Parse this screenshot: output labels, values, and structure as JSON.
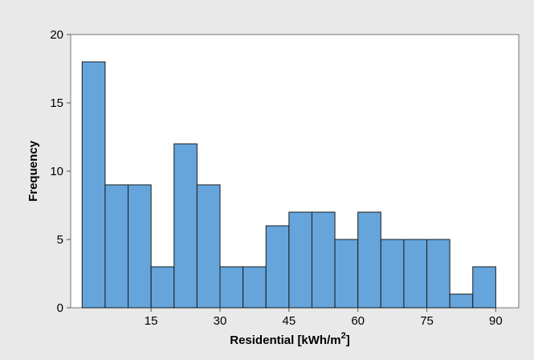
{
  "chart_data": {
    "type": "bar",
    "title": "",
    "xlabel": "Residential [kWh/m²]",
    "ylabel": "Frequency",
    "xlabel_parts": {
      "pre": "Residential [kWh/m",
      "sup": "2",
      "post": "]"
    },
    "bin_width": 5,
    "bin_starts": [
      0,
      5,
      10,
      15,
      20,
      25,
      30,
      35,
      40,
      45,
      50,
      55,
      60,
      65,
      70,
      75,
      80,
      85,
      90
    ],
    "values": [
      18,
      9,
      9,
      3,
      12,
      9,
      3,
      3,
      6,
      7,
      7,
      5,
      7,
      5,
      5,
      5,
      1,
      3,
      0
    ],
    "xlim": [
      -2.5,
      95
    ],
    "ylim": [
      0,
      20
    ],
    "xticks": [
      15,
      30,
      45,
      60,
      75,
      90
    ],
    "yticks": [
      0,
      5,
      10,
      15,
      20
    ],
    "grid": false,
    "legend": "none"
  },
  "colors": {
    "bar_fill": "#65A5DC",
    "bar_stroke": "#1b1b1b",
    "outer_background": "#E9E9E9",
    "plot_background": "#ffffff",
    "axis": "#555555"
  }
}
